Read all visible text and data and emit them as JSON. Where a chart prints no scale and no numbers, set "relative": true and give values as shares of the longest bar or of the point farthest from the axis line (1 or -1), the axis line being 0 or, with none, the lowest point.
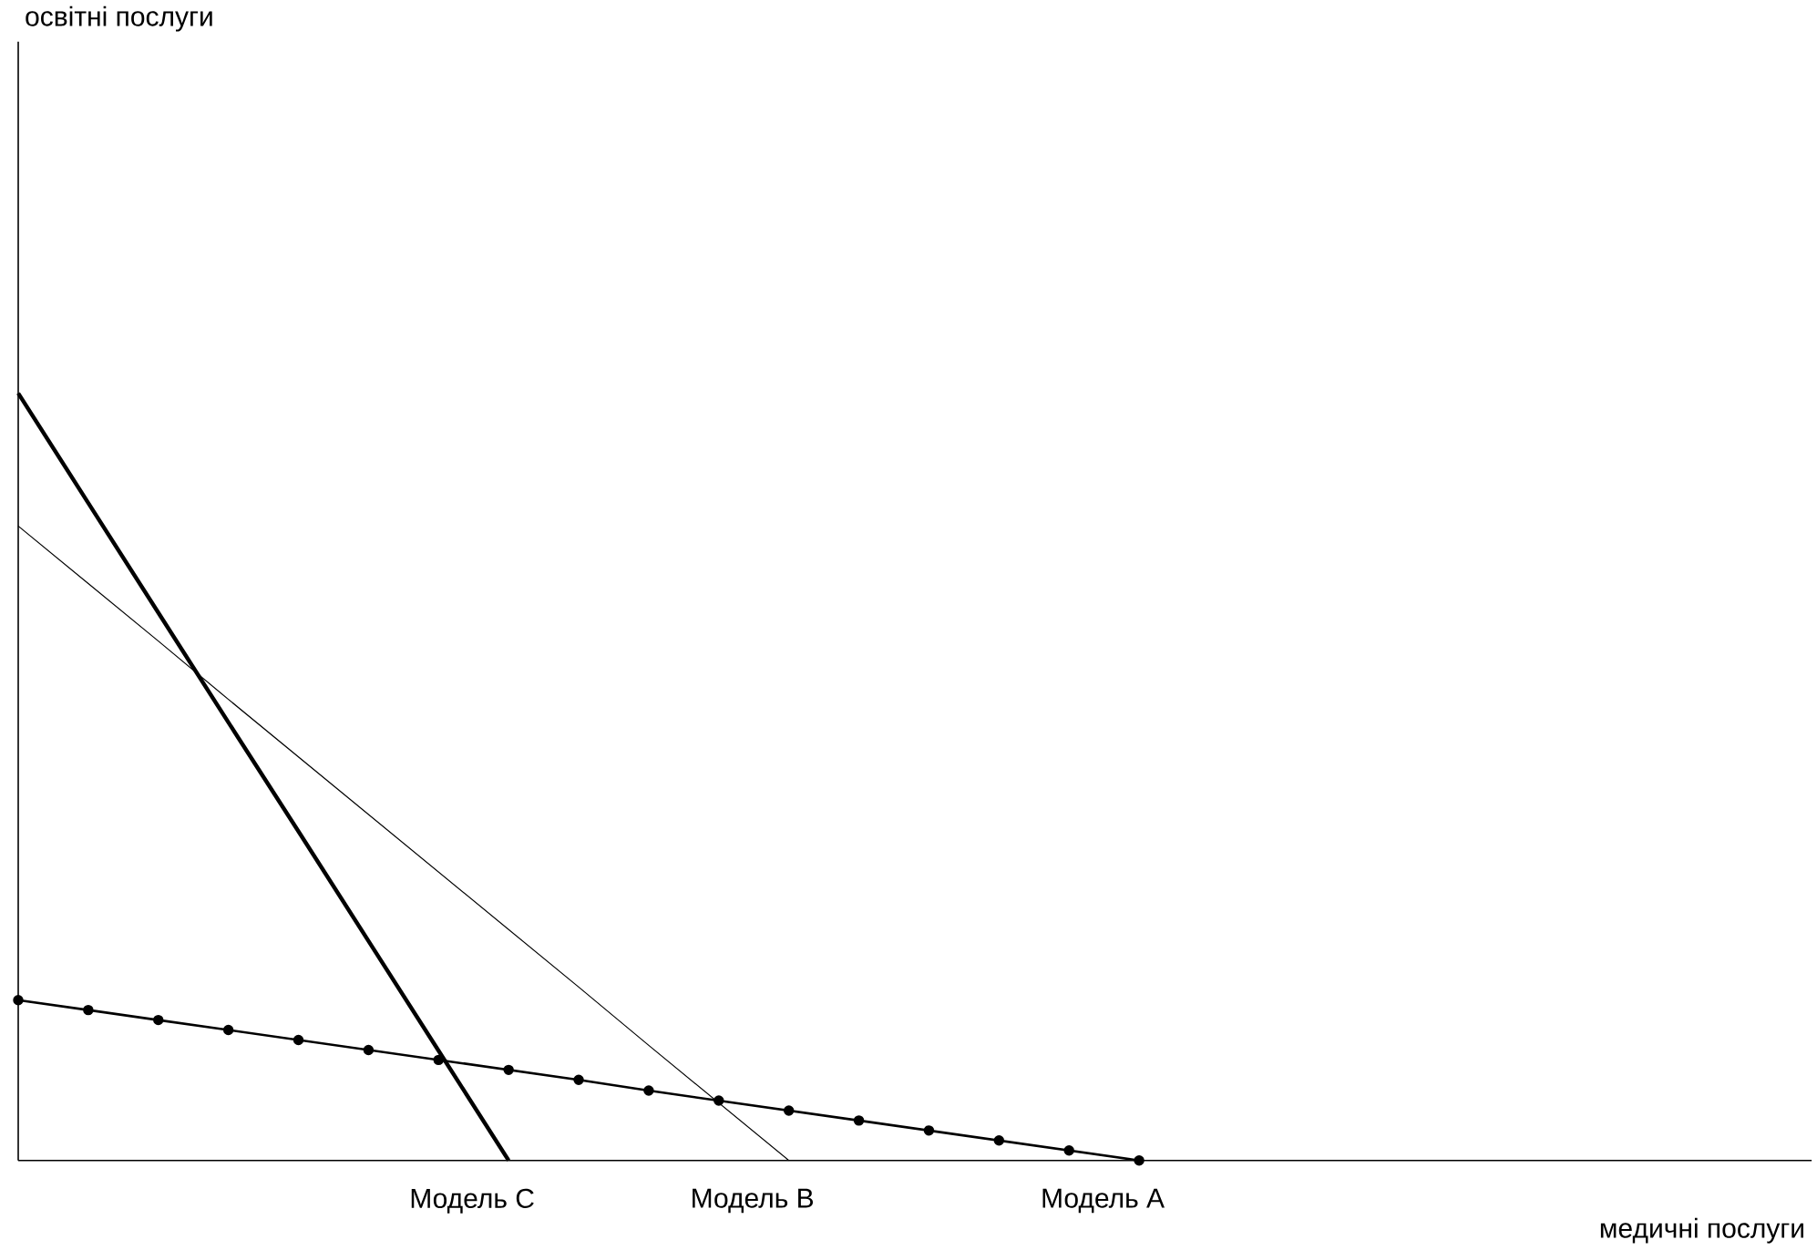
{
  "chart_data": {
    "type": "line",
    "relative": true,
    "xlabel": "медичні послуги",
    "annotations": [
      "освітні послуги"
    ],
    "legend": "bottom",
    "categories": [
      null,
      null,
      null,
      null,
      null,
      null,
      null,
      null,
      null,
      null,
      null,
      null,
      null,
      null,
      null,
      null,
      null,
      null,
      null,
      null,
      null,
      null,
      null,
      null,
      null,
      null
    ],
    "series": [
      {
        "name": "Модель A",
        "color": "#000000",
        "marker": "circle",
        "values": [
          0.209,
          0.196,
          0.183,
          0.17,
          0.157,
          0.144,
          0.131,
          0.118,
          0.105,
          0.091,
          0.078,
          0.065,
          0.052,
          0.039,
          0.026,
          0.013,
          0,
          null,
          null,
          null,
          null,
          null,
          null,
          null,
          null,
          null
        ]
      },
      {
        "name": "Модель B",
        "color": "#000000",
        "marker": "none",
        "values": [
          0.827,
          0.752,
          0.677,
          0.601,
          0.526,
          0.451,
          0.376,
          0.301,
          0.226,
          0.15,
          0.075,
          0,
          null,
          null,
          null,
          null,
          null,
          null,
          null,
          null,
          null,
          null,
          null,
          null,
          null,
          null
        ]
      },
      {
        "name": "Модель C",
        "color": "#000000",
        "marker": "none",
        "values": [
          1,
          0.857,
          0.714,
          0.571,
          0.429,
          0.286,
          0.143,
          0,
          null,
          null,
          null,
          null,
          null,
          null,
          null,
          null,
          null,
          null,
          null,
          null,
          null,
          null,
          null,
          null,
          null,
          null
        ]
      }
    ]
  }
}
